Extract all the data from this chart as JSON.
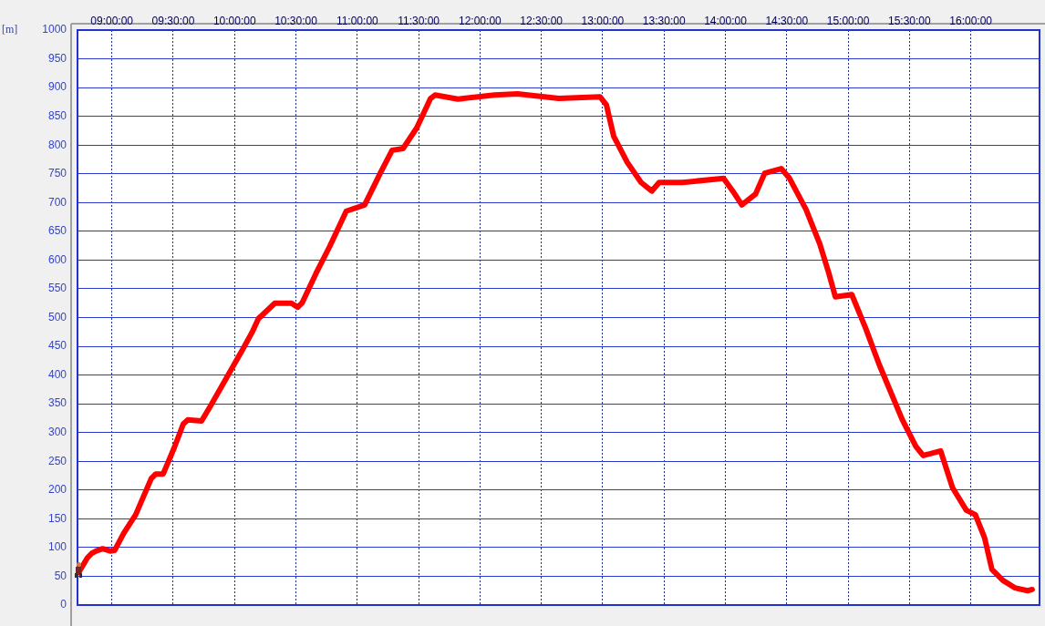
{
  "chart_data": {
    "type": "line",
    "ylabel": "[m]",
    "xlim": [
      8.72,
      16.56
    ],
    "ylim": [
      0,
      1000
    ],
    "xticks": [
      {
        "value": 9,
        "label": "09:00:00"
      },
      {
        "value": 9.5,
        "label": "09:30:00"
      },
      {
        "value": 10,
        "label": "10:00:00"
      },
      {
        "value": 10.5,
        "label": "10:30:00"
      },
      {
        "value": 11,
        "label": "11:00:00"
      },
      {
        "value": 11.5,
        "label": "11:30:00"
      },
      {
        "value": 12,
        "label": "12:00:00"
      },
      {
        "value": 12.5,
        "label": "12:30:00"
      },
      {
        "value": 13,
        "label": "13:00:00"
      },
      {
        "value": 13.5,
        "label": "13:30:00"
      },
      {
        "value": 14,
        "label": "14:00:00"
      },
      {
        "value": 14.5,
        "label": "14:30:00"
      },
      {
        "value": 15,
        "label": "15:00:00"
      },
      {
        "value": 15.5,
        "label": "15:30:00"
      },
      {
        "value": 16,
        "label": "16:00:00"
      }
    ],
    "yticks": [
      0,
      50,
      100,
      150,
      200,
      250,
      300,
      350,
      400,
      450,
      500,
      550,
      600,
      650,
      700,
      750,
      800,
      850,
      900,
      950,
      1000
    ],
    "grid": true,
    "legend": false,
    "marker": "none",
    "line_style": "solid",
    "series": [
      {
        "color": "#ff0000",
        "x": [
          8.731,
          8.8,
          8.836,
          8.873,
          8.925,
          8.985,
          9.022,
          9.097,
          9.194,
          9.321,
          9.358,
          9.418,
          9.507,
          9.582,
          9.619,
          9.731,
          9.806,
          9.955,
          10.067,
          10.142,
          10.194,
          10.269,
          10.328,
          10.463,
          10.515,
          10.552,
          10.664,
          10.776,
          10.91,
          11.06,
          11.187,
          11.284,
          11.373,
          11.485,
          11.597,
          11.634,
          11.82,
          12.119,
          12.306,
          12.642,
          12.978,
          13.03,
          13.09,
          13.2,
          13.313,
          13.4,
          13.46,
          13.649,
          13.985,
          14.06,
          14.134,
          14.246,
          14.32,
          14.455,
          14.52,
          14.657,
          14.769,
          14.843,
          14.896,
          15.03,
          15.142,
          15.254,
          15.44,
          15.552,
          15.612,
          15.754,
          15.851,
          15.963,
          16.037,
          16.112,
          16.172,
          16.261,
          16.358,
          16.463,
          16.5
        ],
        "values": [
          57,
          82,
          90,
          94,
          98,
          94,
          95,
          125,
          157,
          220,
          228,
          228,
          273,
          315,
          322,
          320,
          347,
          403,
          445,
          474,
          498,
          513,
          525,
          525,
          518,
          526,
          577,
          624,
          685,
          696,
          751,
          791,
          794,
          830,
          881,
          887,
          880,
          887,
          889,
          881,
          884,
          870,
          815,
          770,
          735,
          720,
          735,
          735,
          742,
          720,
          696,
          715,
          751,
          759,
          743,
          688,
          628,
          577,
          536,
          540,
          482,
          418,
          323,
          276,
          260,
          268,
          204,
          165,
          157,
          117,
          62,
          43,
          30,
          25,
          27
        ]
      }
    ]
  }
}
